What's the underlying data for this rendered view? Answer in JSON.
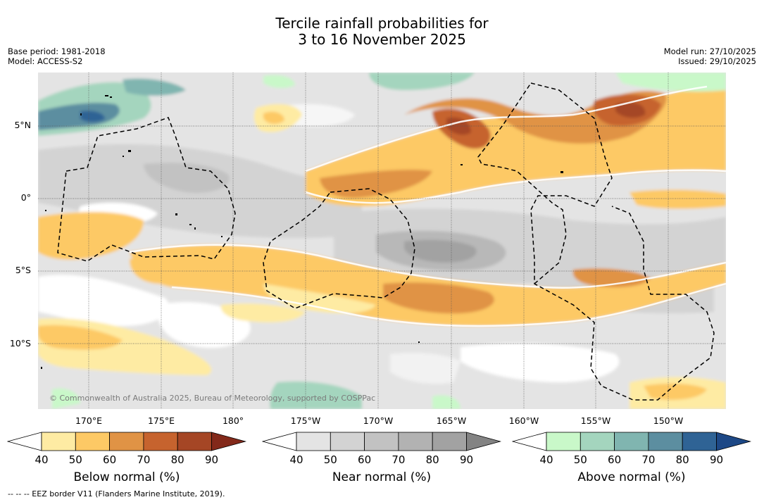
{
  "title_line1": "Tercile rainfall probabilities for",
  "title_line2": "3 to 16 November 2025",
  "meta_left": [
    "Base period: 1981-2018",
    "Model: ACCESS-S2"
  ],
  "meta_right": [
    "Model run: 27/10/2025",
    "Issued: 29/10/2025"
  ],
  "lat_labels": [
    "5°N",
    "0°",
    "5°S",
    "10°S"
  ],
  "lon_labels": [
    "170°E",
    "175°E",
    "180°",
    "175°W",
    "170°W",
    "165°W",
    "160°W",
    "155°W",
    "150°W"
  ],
  "copyright": "© Commonwealth of Australia 2025, Bureau of Meteorology, supported by COSPPac",
  "colorbars": [
    {
      "title": "Below normal (%)",
      "ticks": [
        "40",
        "50",
        "60",
        "70",
        "80",
        "90"
      ],
      "colors": [
        "#ffffff",
        "#feeba3",
        "#fdc965",
        "#e09345",
        "#c6632e",
        "#a54625",
        "#83291a"
      ]
    },
    {
      "title": "Near normal (%)",
      "ticks": [
        "40",
        "50",
        "60",
        "70",
        "80",
        "90"
      ],
      "colors": [
        "#ffffff",
        "#e4e4e4",
        "#d3d3d3",
        "#c2c2c2",
        "#b2b2b2",
        "#a2a2a2",
        "#838383"
      ]
    },
    {
      "title": "Above normal (%)",
      "ticks": [
        "40",
        "50",
        "60",
        "70",
        "80",
        "90"
      ],
      "colors": [
        "#ffffff",
        "#c9f8c9",
        "#a4d5be",
        "#80b5b0",
        "#5c8ea0",
        "#2f6395",
        "#1d4886"
      ]
    }
  ],
  "eez_note": "-- -- -- EEZ border V11 (Flanders Marine Institute, 2019)."
}
